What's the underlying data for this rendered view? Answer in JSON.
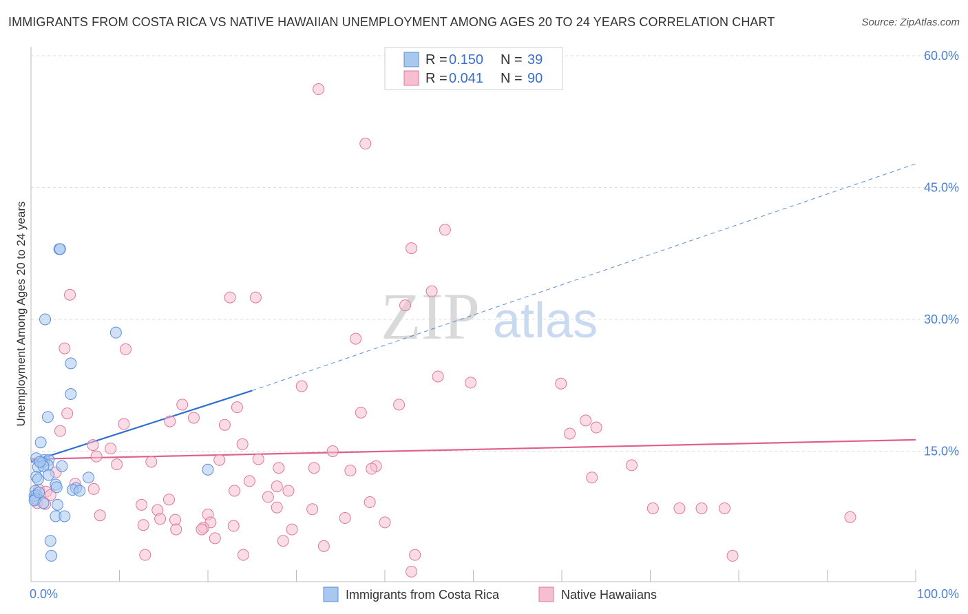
{
  "header": {
    "title": "IMMIGRANTS FROM COSTA RICA VS NATIVE HAWAIIAN UNEMPLOYMENT AMONG AGES 20 TO 24 YEARS CORRELATION CHART",
    "source": "Source: ZipAtlas.com"
  },
  "watermark": {
    "zip": "ZIP",
    "atlas": "atlas"
  },
  "colors": {
    "blue_fill": "#a9c8f0",
    "blue_stroke": "#5b8fd9",
    "blue_line": "#2f6fd1",
    "pink_fill": "#f6bfd0",
    "pink_stroke": "#e0779b",
    "pink_line": "#e0608a",
    "grid": "#dddddd",
    "axis_label": "#4a7fd1"
  },
  "legend": {
    "rows": [
      {
        "r_label": "R =",
        "r_value": "0.150",
        "n_label": "N =",
        "n_value": "39"
      },
      {
        "r_label": "R =",
        "r_value": "0.041",
        "n_label": "N =",
        "n_value": "90"
      }
    ]
  },
  "bottom_legend": {
    "items": [
      "Immigrants from Costa Rica",
      "Native Hawaiians"
    ]
  },
  "chart_data": {
    "type": "scatter",
    "title": "IMMIGRANTS FROM COSTA RICA VS NATIVE HAWAIIAN UNEMPLOYMENT AMONG AGES 20 TO 24 YEARS CORRELATION CHART",
    "xlabel": "",
    "ylabel": "Unemployment Among Ages 20 to 24 years",
    "xlim": [
      0,
      100
    ],
    "ylim": [
      0,
      60
    ],
    "x_tick_labels": [
      {
        "value": 0,
        "label": "0.0%"
      },
      {
        "value": 100,
        "label": "100.0%"
      }
    ],
    "y_tick_labels": [
      {
        "value": 15,
        "label": "15.0%"
      },
      {
        "value": 30,
        "label": "30.0%"
      },
      {
        "value": 45,
        "label": "45.0%"
      },
      {
        "value": 60,
        "label": "60.0%"
      }
    ],
    "x_minor_ticks": [
      10,
      20,
      30,
      40,
      50,
      60,
      70,
      80,
      90,
      100
    ],
    "y_gridlines": [
      15,
      30,
      45,
      60
    ],
    "series": [
      {
        "name": "Immigrants from Costa Rica",
        "R": 0.15,
        "N": 39,
        "points": [
          [
            3.2,
            38.0
          ],
          [
            3.3,
            38.0
          ],
          [
            1.6,
            30.0
          ],
          [
            9.6,
            28.5
          ],
          [
            4.5,
            25.0
          ],
          [
            4.5,
            21.5
          ],
          [
            1.9,
            18.9
          ],
          [
            1.1,
            16.0
          ],
          [
            0.6,
            14.2
          ],
          [
            1.5,
            14.0
          ],
          [
            2.0,
            14.0
          ],
          [
            1.3,
            13.7
          ],
          [
            1.9,
            13.4
          ],
          [
            3.5,
            13.3
          ],
          [
            0.8,
            13.2
          ],
          [
            1.4,
            13.3
          ],
          [
            2.0,
            12.3
          ],
          [
            0.6,
            12.1
          ],
          [
            0.8,
            11.8
          ],
          [
            6.5,
            12.0
          ],
          [
            20.0,
            12.9
          ],
          [
            2.8,
            11.2
          ],
          [
            2.9,
            10.9
          ],
          [
            5.1,
            10.8
          ],
          [
            4.7,
            10.6
          ],
          [
            5.5,
            10.5
          ],
          [
            0.5,
            10.5
          ],
          [
            0.6,
            10.0
          ],
          [
            0.4,
            9.9
          ],
          [
            0.5,
            9.6
          ],
          [
            0.4,
            9.4
          ],
          [
            1.4,
            9.1
          ],
          [
            3.0,
            8.9
          ],
          [
            2.8,
            7.6
          ],
          [
            3.8,
            7.6
          ],
          [
            2.2,
            4.8
          ],
          [
            2.3,
            3.1
          ],
          [
            1.0,
            13.8
          ],
          [
            0.9,
            10.3
          ]
        ],
        "trendline": {
          "x": [
            0,
            25
          ],
          "y": [
            13.8,
            21.9
          ],
          "dashed_extension": {
            "x": [
              25,
              100
            ],
            "y": [
              21.9,
              47.7
            ]
          }
        }
      },
      {
        "name": "Native Hawaiians",
        "R": 0.041,
        "N": 90,
        "points": [
          [
            32.5,
            56.2
          ],
          [
            37.8,
            50.0
          ],
          [
            46.8,
            40.2
          ],
          [
            43.0,
            38.1
          ],
          [
            4.4,
            32.8
          ],
          [
            22.5,
            32.5
          ],
          [
            25.4,
            32.5
          ],
          [
            45.3,
            33.2
          ],
          [
            42.3,
            31.6
          ],
          [
            36.7,
            27.8
          ],
          [
            3.8,
            26.7
          ],
          [
            10.7,
            26.6
          ],
          [
            46.0,
            23.5
          ],
          [
            30.6,
            22.4
          ],
          [
            49.7,
            22.8
          ],
          [
            59.9,
            22.7
          ],
          [
            17.1,
            20.3
          ],
          [
            41.6,
            20.3
          ],
          [
            23.3,
            20.0
          ],
          [
            4.1,
            19.3
          ],
          [
            37.3,
            19.4
          ],
          [
            18.4,
            18.8
          ],
          [
            15.7,
            18.4
          ],
          [
            10.5,
            18.1
          ],
          [
            21.9,
            18.0
          ],
          [
            62.7,
            18.5
          ],
          [
            63.9,
            17.7
          ],
          [
            3.3,
            17.3
          ],
          [
            60.9,
            17.0
          ],
          [
            7.0,
            15.7
          ],
          [
            23.9,
            15.8
          ],
          [
            9.0,
            15.3
          ],
          [
            34.1,
            15.0
          ],
          [
            7.4,
            14.4
          ],
          [
            21.3,
            14.0
          ],
          [
            25.7,
            14.1
          ],
          [
            13.6,
            13.8
          ],
          [
            9.7,
            13.5
          ],
          [
            67.9,
            13.4
          ],
          [
            39.0,
            13.3
          ],
          [
            28.0,
            13.1
          ],
          [
            32.0,
            13.1
          ],
          [
            38.5,
            13.0
          ],
          [
            36.1,
            12.8
          ],
          [
            2.8,
            12.6
          ],
          [
            63.4,
            12.0
          ],
          [
            24.7,
            11.6
          ],
          [
            5.0,
            11.3
          ],
          [
            7.1,
            10.7
          ],
          [
            27.8,
            11.0
          ],
          [
            23.0,
            10.5
          ],
          [
            29.1,
            10.5
          ],
          [
            0.9,
            10.6
          ],
          [
            1.7,
            10.4
          ],
          [
            2.2,
            10.0
          ],
          [
            26.8,
            9.8
          ],
          [
            15.6,
            9.5
          ],
          [
            38.3,
            9.2
          ],
          [
            0.7,
            9.1
          ],
          [
            12.5,
            8.9
          ],
          [
            1.6,
            9.0
          ],
          [
            27.8,
            8.6
          ],
          [
            14.3,
            8.3
          ],
          [
            31.8,
            8.4
          ],
          [
            70.3,
            8.5
          ],
          [
            73.3,
            8.5
          ],
          [
            75.8,
            8.5
          ],
          [
            78.4,
            8.5
          ],
          [
            7.8,
            7.7
          ],
          [
            20.0,
            7.8
          ],
          [
            92.6,
            7.5
          ],
          [
            35.5,
            7.4
          ],
          [
            14.6,
            7.3
          ],
          [
            16.3,
            7.2
          ],
          [
            20.3,
            6.9
          ],
          [
            40.0,
            6.9
          ],
          [
            12.7,
            6.6
          ],
          [
            19.5,
            6.3
          ],
          [
            16.4,
            6.1
          ],
          [
            19.3,
            6.1
          ],
          [
            22.9,
            6.5
          ],
          [
            29.5,
            6.1
          ],
          [
            20.8,
            5.1
          ],
          [
            28.5,
            4.8
          ],
          [
            33.1,
            4.2
          ],
          [
            12.9,
            3.2
          ],
          [
            24.0,
            3.2
          ],
          [
            43.4,
            3.2
          ],
          [
            79.3,
            3.1
          ],
          [
            43.0,
            1.3
          ]
        ],
        "trendline": {
          "x": [
            0,
            100
          ],
          "y": [
            14.1,
            16.3
          ]
        }
      }
    ]
  }
}
